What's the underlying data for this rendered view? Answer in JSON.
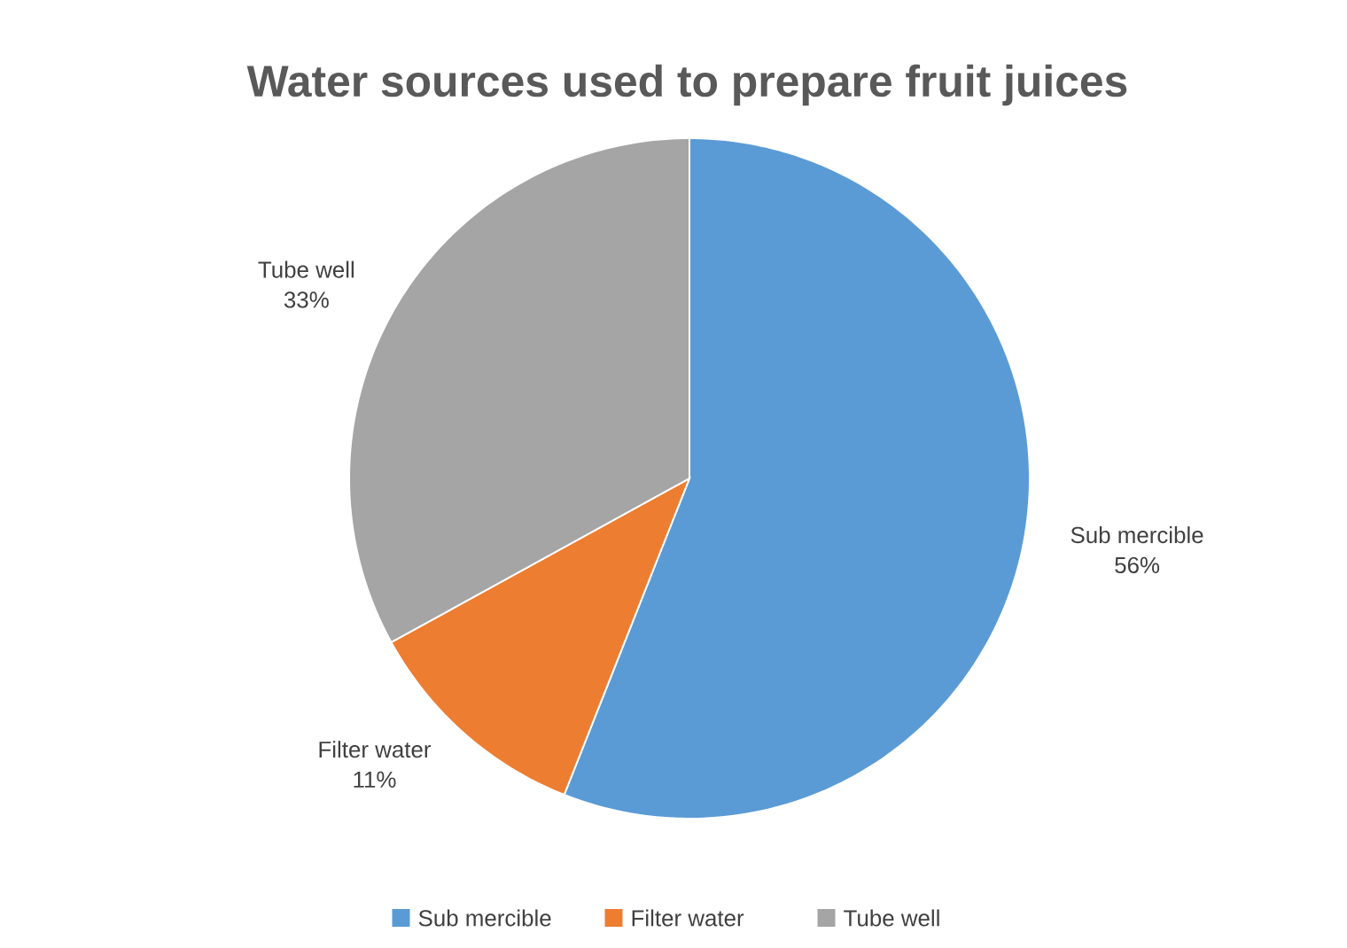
{
  "chart_data": {
    "type": "pie",
    "title": "Water sources used to prepare fruit juices",
    "categories": [
      "Sub mercible",
      "Filter water",
      "Tube well"
    ],
    "values": [
      56,
      11,
      33
    ],
    "value_labels": [
      "56%",
      "11%",
      "33%"
    ],
    "colors": [
      "#5b9bd5",
      "#ed7d31",
      "#a5a5a5"
    ],
    "legend": "bottom"
  }
}
